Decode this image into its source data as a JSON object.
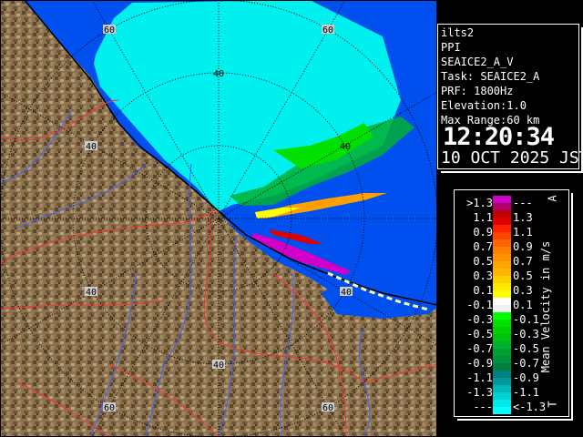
{
  "info": {
    "radar": "ilts2",
    "mode": "PPI",
    "product": "SEAICE2_A_V",
    "task": "Task: SEAICE2_A",
    "prf": "PRF: 1800Hz",
    "elevation": "Elevation:1.0",
    "max_range": "Max Range:60 km",
    "time": "12:20:34",
    "date": "10 OCT 2025 JST"
  },
  "map": {
    "range_labels": [
      "60",
      "60",
      "40",
      "40",
      "40",
      "40",
      "40",
      "40",
      "60",
      "60"
    ],
    "colors": {
      "sea": "#0050f0",
      "land": "#8c7452",
      "echo_weak": "#00f0f0",
      "coast": "#000000",
      "river": "#4060ff",
      "road": "#ff3030"
    }
  },
  "legend": {
    "title": "Mean Velocity in m/s",
    "top_mark": "A",
    "bottom_mark": "T",
    "rows": [
      {
        "lo": ">1.3",
        "hi": "---",
        "c1": "#d000c8",
        "c2": "#b0006c"
      },
      {
        "lo": "1.1",
        "hi": "1.3",
        "c1": "#c00000",
        "c2": "#e00000"
      },
      {
        "lo": "0.9",
        "hi": "1.1",
        "c1": "#ff2000",
        "c2": "#ff4400"
      },
      {
        "lo": "0.7",
        "hi": "0.9",
        "c1": "#ff6400",
        "c2": "#ff8000"
      },
      {
        "lo": "0.5",
        "hi": "0.7",
        "c1": "#ff9400",
        "c2": "#ffa400"
      },
      {
        "lo": "0.3",
        "hi": "0.5",
        "c1": "#ffb400",
        "c2": "#ffd000"
      },
      {
        "lo": "0.1",
        "hi": "0.3",
        "c1": "#ffe800",
        "c2": "#ffff00"
      },
      {
        "lo": "-0.1",
        "hi": "0.1",
        "c1": "#ffffff",
        "c2": "#f0f0f0"
      },
      {
        "lo": "-0.3",
        "hi": "-0.1",
        "c1": "#00ff00",
        "c2": "#00e000"
      },
      {
        "lo": "-0.5",
        "hi": "-0.3",
        "c1": "#00d000",
        "c2": "#00c010"
      },
      {
        "lo": "-0.7",
        "hi": "-0.5",
        "c1": "#00b030",
        "c2": "#00a030"
      },
      {
        "lo": "-0.9",
        "hi": "-0.7",
        "c1": "#009040",
        "c2": "#008040"
      },
      {
        "lo": "-1.1",
        "hi": "-0.9",
        "c1": "#008080",
        "c2": "#009898"
      },
      {
        "lo": "-1.3",
        "hi": "-1.1",
        "c1": "#00b8b8",
        "c2": "#00d0d0"
      },
      {
        "lo": "---",
        "hi": "<-1.3",
        "c1": "#00e8e8",
        "c2": "#00ffff"
      }
    ]
  }
}
